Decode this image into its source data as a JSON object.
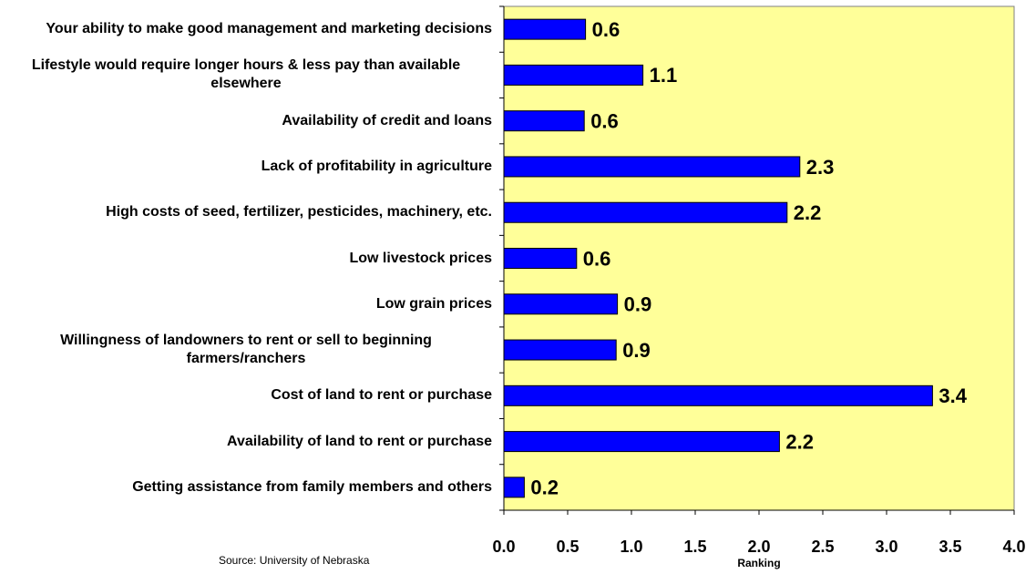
{
  "chart_data": {
    "type": "bar",
    "orientation": "horizontal",
    "categories": [
      "Your ability to make good management and marketing decisions",
      "Lifestyle would require longer hours & less pay than available elsewhere",
      "Availability of credit and loans",
      "Lack of profitability in agriculture",
      "High costs of seed, fertilizer, pesticides, machinery, etc.",
      "Low livestock prices",
      "Low grain prices",
      "Willingness of landowners to rent or sell to beginning farmers/ranchers",
      "Cost of land to rent or purchase",
      "Availability of land to rent or purchase",
      "Getting assistance from family members and others"
    ],
    "values": [
      0.64,
      1.09,
      0.63,
      2.32,
      2.22,
      0.57,
      0.89,
      0.88,
      3.36,
      2.16,
      0.16
    ],
    "value_labels": [
      "0.6",
      "1.1",
      "0.6",
      "2.3",
      "2.2",
      "0.6",
      "0.9",
      "0.9",
      "3.4",
      "2.2",
      "0.2"
    ],
    "color": "#0000ff",
    "xlim": [
      0,
      4
    ],
    "xticks": [
      {
        "value": 0,
        "label": "0.0"
      },
      {
        "value": 0.5,
        "label": "0.5"
      },
      {
        "value": 1,
        "label": "1.0"
      },
      {
        "value": 1.5,
        "label": "1.5"
      },
      {
        "value": 2,
        "label": "2.0"
      },
      {
        "value": 2.5,
        "label": "2.5"
      },
      {
        "value": 3,
        "label": "3.0"
      },
      {
        "value": 3.5,
        "label": "3.5"
      },
      {
        "value": 4,
        "label": "4.0"
      }
    ],
    "xlabel": "Ranking",
    "source": "Source:  University of Nebraska",
    "grid": false,
    "plot_background": "#ffff99"
  }
}
